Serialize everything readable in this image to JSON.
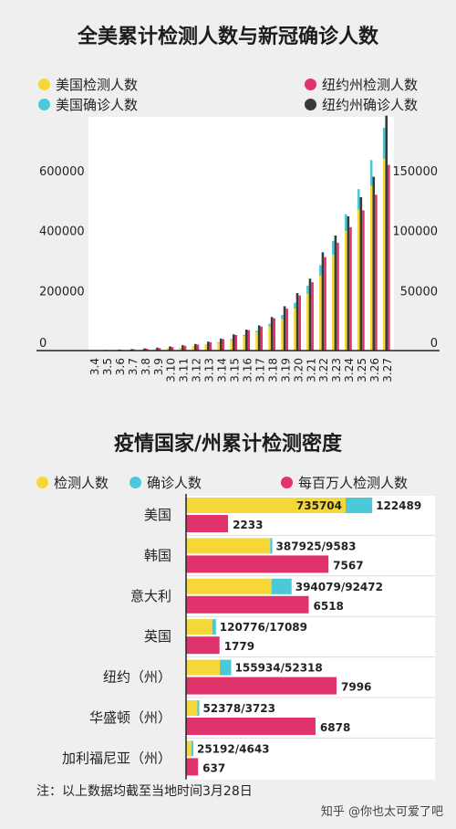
{
  "chart_data": [
    {
      "type": "bar",
      "title": "全美累计检测人数与新冠确诊人数",
      "categories": [
        "3.4",
        "3.5",
        "3.6",
        "3.7",
        "3.8",
        "3.9",
        "3.10",
        "3.11",
        "3.12",
        "3.13",
        "3.14",
        "3.15",
        "3.16",
        "3.17",
        "3.18",
        "3.19",
        "3.20",
        "3.21",
        "3.22",
        "3.23",
        "3.24",
        "3.25",
        "3.26",
        "3.27"
      ],
      "left_axis": {
        "ticks": [
          0,
          200000,
          400000,
          600000
        ],
        "labels": [
          "0",
          "200000",
          "400000",
          "600000"
        ],
        "ylim": [
          0,
          780000
        ]
      },
      "right_axis": {
        "ticks": [
          0,
          50000,
          100000,
          150000
        ],
        "labels": [
          "0",
          "50000",
          "100000",
          "150000"
        ],
        "ylim": [
          0,
          195000
        ]
      },
      "legend": [
        {
          "name": "美国检测人数",
          "color": "#f5d838"
        },
        {
          "name": "美国确诊人数",
          "color": "#4cc9d8"
        },
        {
          "name": "纽约州检测人数",
          "color": "#e0336b"
        },
        {
          "name": "纽约州确诊人数",
          "color": "#3a3a3a"
        }
      ],
      "series": [
        {
          "name": "美国检测人数",
          "axis": "left",
          "values": [
            1000,
            1500,
            2000,
            2500,
            3000,
            4000,
            6000,
            8000,
            12000,
            18000,
            25000,
            35000,
            48000,
            60000,
            80000,
            105000,
            140000,
            190000,
            250000,
            320000,
            400000,
            470000,
            550000,
            640000
          ]
        },
        {
          "name": "美国确诊人数",
          "axis": "left",
          "values": [
            200,
            250,
            350,
            450,
            550,
            750,
            1000,
            1300,
            1700,
            2200,
            2900,
            3500,
            4600,
            6400,
            9400,
            14000,
            19600,
            26700,
            35200,
            46400,
            55200,
            69000,
            86000,
            104000
          ]
        },
        {
          "name": "纽约州检测人数",
          "axis": "right",
          "values": [
            200,
            400,
            700,
            1000,
            1500,
            2000,
            3000,
            4000,
            5000,
            7000,
            9500,
            13000,
            17000,
            20000,
            27000,
            35000,
            46000,
            57000,
            78000,
            90000,
            103000,
            117000,
            130000,
            155000
          ]
        },
        {
          "name": "纽约州确诊人数",
          "axis": "right",
          "values": [
            400,
            600,
            900,
            1300,
            1800,
            2500,
            3500,
            4500,
            5500,
            7500,
            10000,
            13500,
            17500,
            21000,
            28000,
            37000,
            48000,
            60000,
            82000,
            96000,
            112000,
            128000,
            145000,
            196000
          ]
        }
      ]
    },
    {
      "type": "bar",
      "orientation": "horizontal",
      "title": "疫情国家/州累计检测密度",
      "legend": [
        {
          "name": "检测人数",
          "color": "#f5d838"
        },
        {
          "name": "确诊人数",
          "color": "#4cc9d8"
        },
        {
          "name": "每百万人检测人数",
          "color": "#e0336b"
        }
      ],
      "categories": [
        "美国",
        "韩国",
        "意大利",
        "英国",
        "纽约（州）",
        "华盛顿（州）",
        "加利福尼亚（州）"
      ],
      "tests": [
        735704,
        387925,
        394079,
        120776,
        155934,
        52378,
        25192
      ],
      "confirmed": [
        122489,
        9583,
        92472,
        17089,
        52318,
        3723,
        4643
      ],
      "per_million": [
        2233,
        7567,
        6518,
        1779,
        7996,
        6878,
        637
      ],
      "bar_labels": [
        "735704",
        "387925/9583",
        "394079/92472",
        "120776/17089",
        "155934/52318",
        "52378/3723",
        "25192/4643"
      ],
      "confirmed_label_usa": "122489",
      "per_million_labels": [
        "2233",
        "7567",
        "6518",
        "1779",
        "7996",
        "6878",
        "637"
      ]
    }
  ],
  "note": "注：以上数据均截至当地时间3月28日",
  "watermark": "知乎 @你也太可爱了吧",
  "colors": {
    "yellow": "#f5d838",
    "cyan": "#4cc9d8",
    "pink": "#e0336b",
    "dark": "#3a3a3a"
  }
}
